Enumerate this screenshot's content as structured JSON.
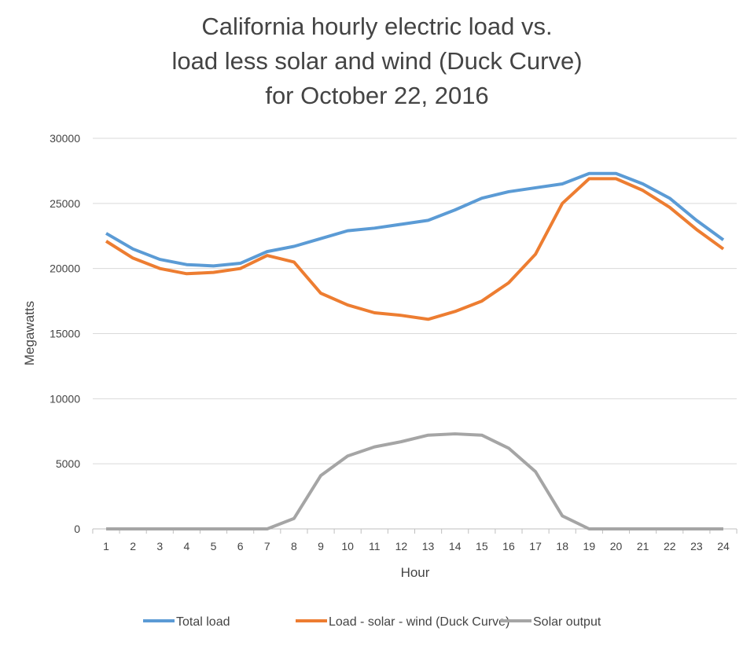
{
  "chart_data": {
    "type": "line",
    "title_lines": [
      "California hourly electric load vs.",
      "load less solar and wind (Duck Curve)",
      "for October 22, 2016"
    ],
    "xlabel": "Hour",
    "ylabel": "Megawatts",
    "x": [
      1,
      2,
      3,
      4,
      5,
      6,
      7,
      8,
      9,
      10,
      11,
      12,
      13,
      14,
      15,
      16,
      17,
      18,
      19,
      20,
      21,
      22,
      23,
      24
    ],
    "ylim": [
      0,
      30000
    ],
    "yticks": [
      0,
      5000,
      10000,
      15000,
      20000,
      25000,
      30000
    ],
    "grid": true,
    "legend": "bottom",
    "series": [
      {
        "name": "Total load",
        "color": "#5b9bd5",
        "values": [
          22700,
          21500,
          20700,
          20300,
          20200,
          20400,
          21300,
          21700,
          22300,
          22900,
          23100,
          23400,
          23700,
          24500,
          25400,
          25900,
          26200,
          26500,
          27300,
          27300,
          26500,
          25400,
          23700,
          22200
        ]
      },
      {
        "name": "Load - solar - wind (Duck Curve)",
        "color": "#ed7d31",
        "values": [
          22100,
          20800,
          20000,
          19600,
          19700,
          20000,
          21000,
          20500,
          18100,
          17200,
          16600,
          16400,
          16100,
          16700,
          17500,
          18900,
          21100,
          25000,
          26900,
          26900,
          26000,
          24700,
          23000,
          21500
        ]
      },
      {
        "name": "Solar output",
        "color": "#a5a5a5",
        "values": [
          0,
          0,
          0,
          0,
          0,
          0,
          0,
          800,
          4100,
          5600,
          6300,
          6700,
          7200,
          7300,
          7200,
          6200,
          4400,
          1000,
          0,
          0,
          0,
          0,
          0,
          0
        ]
      }
    ]
  }
}
